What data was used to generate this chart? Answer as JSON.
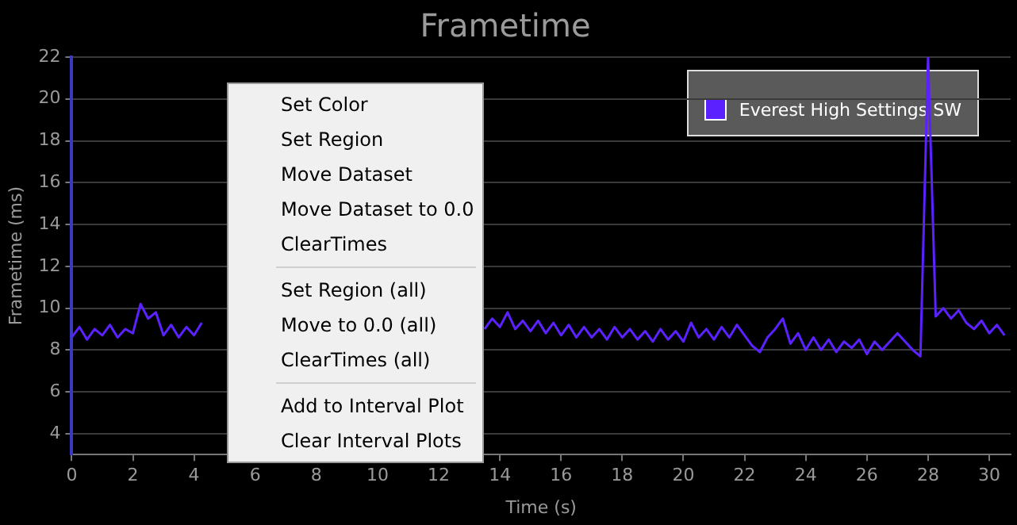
{
  "chart_data": {
    "type": "line",
    "title": "Frametime",
    "xlabel": "Time (s)",
    "ylabel": "Frametime (ms)",
    "annotations": [
      "Set Color",
      "Set Region",
      "Move Dataset",
      "Move Dataset to 0.0",
      "ClearTimes",
      "Set Region (all)",
      "Move to 0.0 (all)",
      "ClearTimes (all)",
      "Add to Interval Plot",
      "Clear Interval Plots"
    ],
    "series": [
      {
        "name": "Everest High Settings SW",
        "color": "#5b22ff",
        "x": [
          0,
          0.25,
          0.5,
          0.75,
          1,
          1.25,
          1.5,
          1.75,
          2,
          2.25,
          2.5,
          2.75,
          3,
          3.25,
          3.5,
          3.75,
          4,
          4.25,
          8.5,
          13,
          13.25,
          13.5,
          13.75,
          14,
          14.25,
          14.5,
          14.75,
          15,
          15.25,
          15.5,
          15.75,
          16,
          16.25,
          16.5,
          16.75,
          17,
          17.25,
          17.5,
          17.75,
          18,
          18.25,
          18.5,
          18.75,
          19,
          19.25,
          19.5,
          19.75,
          20,
          20.25,
          20.5,
          20.75,
          21,
          21.25,
          21.5,
          21.75,
          22,
          22.25,
          22.5,
          22.75,
          23,
          23.25,
          23.5,
          23.75,
          24,
          24.25,
          24.5,
          24.75,
          25,
          25.25,
          25.5,
          25.75,
          26,
          26.25,
          26.5,
          26.75,
          27,
          27.25,
          27.5,
          27.75,
          28,
          28.25,
          28.5,
          28.75,
          29,
          29.25,
          29.5,
          29.75,
          30,
          30.25,
          30.5
        ],
        "values": [
          8.6,
          9.1,
          8.5,
          9.0,
          8.7,
          9.2,
          8.6,
          9.0,
          8.8,
          10.2,
          9.5,
          9.8,
          8.7,
          9.2,
          8.6,
          9.1,
          8.7,
          9.3,
          null,
          null,
          null,
          9.0,
          9.5,
          9.1,
          9.8,
          9.0,
          9.4,
          8.9,
          9.4,
          8.8,
          9.3,
          8.7,
          9.2,
          8.6,
          9.1,
          8.6,
          9.0,
          8.5,
          9.1,
          8.6,
          9.0,
          8.5,
          8.9,
          8.4,
          9.0,
          8.5,
          8.9,
          8.4,
          9.3,
          8.6,
          9.0,
          8.5,
          9.1,
          8.6,
          9.2,
          8.7,
          8.2,
          7.9,
          8.6,
          9.0,
          9.5,
          8.3,
          8.8,
          8.0,
          8.6,
          8.0,
          8.5,
          7.9,
          8.4,
          8.1,
          8.5,
          7.8,
          8.4,
          8.0,
          8.4,
          8.8,
          8.4,
          8.0,
          7.7,
          22,
          9.6,
          10.0,
          9.5,
          9.9,
          9.3,
          9.0,
          9.4,
          8.8,
          9.2,
          8.7
        ]
      }
    ],
    "xlim": [
      0,
      30.7
    ],
    "xticks": [
      0,
      2,
      4,
      6,
      8,
      10,
      12,
      14,
      16,
      18,
      20,
      22,
      24,
      26,
      28,
      30
    ],
    "ylim": [
      3,
      22
    ],
    "yticks": [
      4,
      6,
      8,
      10,
      12,
      14,
      16,
      18,
      20,
      22
    ],
    "grid": "y",
    "legend": "top right",
    "marker": "none",
    "line_style": "solid"
  }
}
